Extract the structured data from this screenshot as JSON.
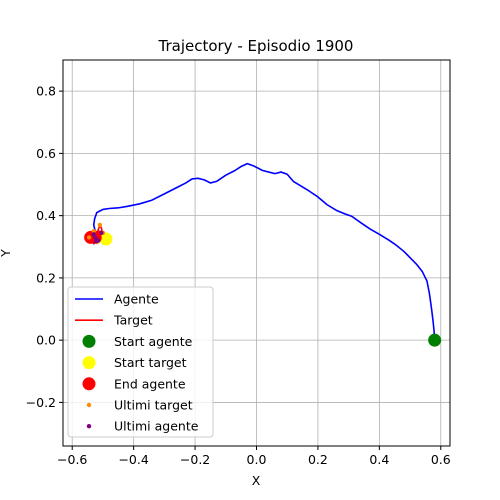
{
  "chart_data": {
    "type": "line",
    "title": "Trajectory - Episodio 1900",
    "xlabel": "X",
    "ylabel": "Y",
    "xlim": [
      -0.63,
      0.63
    ],
    "ylim": [
      -0.34,
      0.9
    ],
    "grid": true,
    "xticks": [
      -0.6,
      -0.4,
      -0.2,
      0.0,
      0.2,
      0.4,
      0.6
    ],
    "xtick_labels": [
      "−0.6",
      "−0.4",
      "−0.2",
      "0.0",
      "0.2",
      "0.4",
      "0.6"
    ],
    "yticks": [
      -0.2,
      0.0,
      0.2,
      0.4,
      0.6,
      0.8
    ],
    "ytick_labels": [
      "−0.2",
      "0.0",
      "0.2",
      "0.4",
      "0.6",
      "0.8"
    ],
    "legend_position": "lower-left",
    "series": [
      {
        "name": "Agente",
        "kind": "line",
        "color": "#0000ff",
        "points": [
          [
            0.58,
            0.0
          ],
          [
            0.578,
            0.03
          ],
          [
            0.575,
            0.06
          ],
          [
            0.57,
            0.1
          ],
          [
            0.563,
            0.15
          ],
          [
            0.555,
            0.19
          ],
          [
            0.54,
            0.22
          ],
          [
            0.52,
            0.245
          ],
          [
            0.5,
            0.265
          ],
          [
            0.48,
            0.285
          ],
          [
            0.455,
            0.305
          ],
          [
            0.43,
            0.322
          ],
          [
            0.4,
            0.34
          ],
          [
            0.37,
            0.357
          ],
          [
            0.34,
            0.377
          ],
          [
            0.31,
            0.398
          ],
          [
            0.29,
            0.405
          ],
          [
            0.26,
            0.417
          ],
          [
            0.23,
            0.435
          ],
          [
            0.2,
            0.46
          ],
          [
            0.17,
            0.48
          ],
          [
            0.12,
            0.51
          ],
          [
            0.1,
            0.533
          ],
          [
            0.08,
            0.54
          ],
          [
            0.06,
            0.535
          ],
          [
            0.04,
            0.54
          ],
          [
            0.02,
            0.545
          ],
          [
            -0.01,
            0.56
          ],
          [
            -0.03,
            0.567
          ],
          [
            -0.05,
            0.558
          ],
          [
            -0.07,
            0.545
          ],
          [
            -0.1,
            0.53
          ],
          [
            -0.13,
            0.51
          ],
          [
            -0.15,
            0.505
          ],
          [
            -0.17,
            0.515
          ],
          [
            -0.19,
            0.52
          ],
          [
            -0.21,
            0.518
          ],
          [
            -0.23,
            0.505
          ],
          [
            -0.26,
            0.49
          ],
          [
            -0.3,
            0.47
          ],
          [
            -0.34,
            0.45
          ],
          [
            -0.38,
            0.438
          ],
          [
            -0.42,
            0.43
          ],
          [
            -0.45,
            0.425
          ],
          [
            -0.48,
            0.423
          ],
          [
            -0.5,
            0.42
          ],
          [
            -0.51,
            0.415
          ],
          [
            -0.52,
            0.41
          ],
          [
            -0.527,
            0.39
          ],
          [
            -0.53,
            0.37
          ],
          [
            -0.525,
            0.35
          ],
          [
            -0.532,
            0.34
          ],
          [
            -0.525,
            0.33
          ],
          [
            -0.535,
            0.325
          ],
          [
            -0.522,
            0.318
          ],
          [
            -0.53,
            0.31
          ],
          [
            -0.515,
            0.32
          ],
          [
            -0.51,
            0.335
          ],
          [
            -0.505,
            0.345
          ]
        ]
      },
      {
        "name": "Target",
        "kind": "line",
        "color": "#ff0000",
        "points": [
          [
            -0.49,
            0.325
          ],
          [
            -0.5,
            0.335
          ],
          [
            -0.505,
            0.36
          ],
          [
            -0.51,
            0.37
          ],
          [
            -0.515,
            0.355
          ],
          [
            -0.52,
            0.345
          ],
          [
            -0.53,
            0.35
          ],
          [
            -0.54,
            0.34
          ],
          [
            -0.545,
            0.33
          ],
          [
            -0.54,
            0.318
          ],
          [
            -0.53,
            0.312
          ],
          [
            -0.52,
            0.315
          ],
          [
            -0.51,
            0.32
          ],
          [
            -0.52,
            0.33
          ],
          [
            -0.535,
            0.338
          ],
          [
            -0.525,
            0.345
          ],
          [
            -0.51,
            0.35
          ],
          [
            -0.5,
            0.345
          ]
        ]
      },
      {
        "name": "Start agente",
        "kind": "marker",
        "color": "#008000",
        "points": [
          [
            0.58,
            0.0
          ]
        ]
      },
      {
        "name": "Start target",
        "kind": "marker",
        "color": "#ffff00",
        "points": [
          [
            -0.49,
            0.325
          ]
        ]
      },
      {
        "name": "End agente",
        "kind": "marker",
        "color": "#ff0000",
        "points": [
          [
            -0.54,
            0.33
          ],
          [
            -0.525,
            0.33
          ]
        ]
      },
      {
        "name": "Ultimi target",
        "kind": "small-marker",
        "color": "#ff8c00",
        "points": [
          [
            -0.51,
            0.37
          ],
          [
            -0.53,
            0.35
          ],
          [
            -0.545,
            0.33
          ],
          [
            -0.52,
            0.315
          ],
          [
            -0.5,
            0.345
          ]
        ]
      },
      {
        "name": "Ultimi agente",
        "kind": "small-marker",
        "color": "#800080",
        "points": [
          [
            -0.53,
            0.34
          ],
          [
            -0.525,
            0.33
          ],
          [
            -0.522,
            0.318
          ],
          [
            -0.515,
            0.32
          ],
          [
            -0.505,
            0.345
          ]
        ]
      }
    ]
  }
}
